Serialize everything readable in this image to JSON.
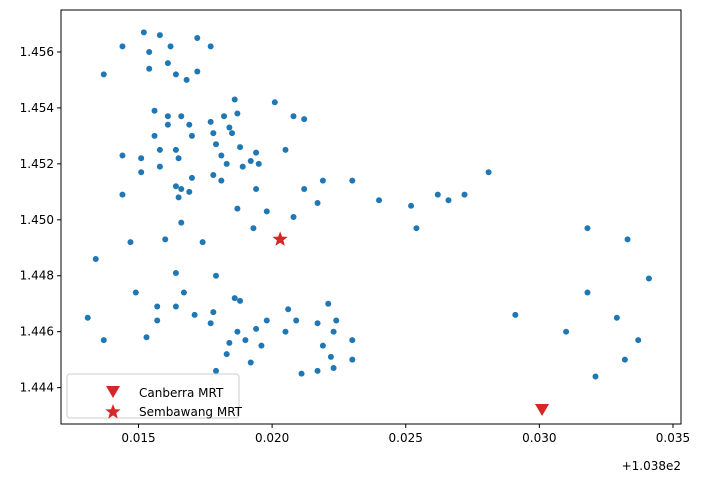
{
  "chart_data": {
    "type": "scatter",
    "title": "",
    "xlabel": "",
    "ylabel": "",
    "x_offset_label": "+1.038e2",
    "xlim": [
      0.0121,
      0.0353
    ],
    "ylim": [
      1.4427,
      1.4575
    ],
    "x_ticks": [
      {
        "value": 0.015,
        "label": "0.015"
      },
      {
        "value": 0.02,
        "label": "0.020"
      },
      {
        "value": 0.025,
        "label": "0.025"
      },
      {
        "value": 0.03,
        "label": "0.030"
      },
      {
        "value": 0.035,
        "label": "0.035"
      }
    ],
    "y_ticks": [
      {
        "value": 1.444,
        "label": "1.444"
      },
      {
        "value": 1.446,
        "label": "1.446"
      },
      {
        "value": 1.448,
        "label": "1.448"
      },
      {
        "value": 1.45,
        "label": "1.450"
      },
      {
        "value": 1.452,
        "label": "1.452"
      },
      {
        "value": 1.454,
        "label": "1.454"
      },
      {
        "value": 1.456,
        "label": "1.456"
      }
    ],
    "grid": false,
    "legend_position": "lower-left",
    "series": [
      {
        "color": "#1f77b4",
        "marker": "circle",
        "points": [
          [
            0.0152,
            1.4567
          ],
          [
            0.0158,
            1.4566
          ],
          [
            0.0172,
            1.4565
          ],
          [
            0.0144,
            1.4562
          ],
          [
            0.0162,
            1.4562
          ],
          [
            0.0177,
            1.4562
          ],
          [
            0.0154,
            1.456
          ],
          [
            0.0161,
            1.4556
          ],
          [
            0.0154,
            1.4554
          ],
          [
            0.0172,
            1.4553
          ],
          [
            0.0164,
            1.4552
          ],
          [
            0.0137,
            1.4552
          ],
          [
            0.0168,
            1.455
          ],
          [
            0.0201,
            1.4542
          ],
          [
            0.0186,
            1.4543
          ],
          [
            0.0156,
            1.4539
          ],
          [
            0.0187,
            1.4538
          ],
          [
            0.0182,
            1.4537
          ],
          [
            0.0161,
            1.4537
          ],
          [
            0.0166,
            1.4537
          ],
          [
            0.0208,
            1.4537
          ],
          [
            0.0212,
            1.4536
          ],
          [
            0.0177,
            1.4535
          ],
          [
            0.0169,
            1.4534
          ],
          [
            0.0184,
            1.4533
          ],
          [
            0.0161,
            1.4534
          ],
          [
            0.0185,
            1.4531
          ],
          [
            0.0178,
            1.4531
          ],
          [
            0.017,
            1.453
          ],
          [
            0.0156,
            1.453
          ],
          [
            0.0179,
            1.4527
          ],
          [
            0.0188,
            1.4526
          ],
          [
            0.0158,
            1.4525
          ],
          [
            0.0164,
            1.4525
          ],
          [
            0.0205,
            1.4525
          ],
          [
            0.0194,
            1.4524
          ],
          [
            0.0144,
            1.4523
          ],
          [
            0.0151,
            1.4522
          ],
          [
            0.0181,
            1.4523
          ],
          [
            0.0165,
            1.4522
          ],
          [
            0.0192,
            1.4521
          ],
          [
            0.0195,
            1.452
          ],
          [
            0.0183,
            1.452
          ],
          [
            0.0158,
            1.4519
          ],
          [
            0.0189,
            1.4519
          ],
          [
            0.0151,
            1.4517
          ],
          [
            0.0178,
            1.4516
          ],
          [
            0.017,
            1.4515
          ],
          [
            0.0219,
            1.4514
          ],
          [
            0.023,
            1.4514
          ],
          [
            0.0181,
            1.4514
          ],
          [
            0.0164,
            1.4512
          ],
          [
            0.0166,
            1.4511
          ],
          [
            0.0194,
            1.4511
          ],
          [
            0.0212,
            1.4511
          ],
          [
            0.0169,
            1.451
          ],
          [
            0.0281,
            1.4517
          ],
          [
            0.0144,
            1.4509
          ],
          [
            0.0165,
            1.4508
          ],
          [
            0.0217,
            1.4506
          ],
          [
            0.024,
            1.4507
          ],
          [
            0.0262,
            1.4509
          ],
          [
            0.0272,
            1.4509
          ],
          [
            0.0266,
            1.4507
          ],
          [
            0.0252,
            1.4505
          ],
          [
            0.0187,
            1.4504
          ],
          [
            0.0198,
            1.4503
          ],
          [
            0.0208,
            1.4501
          ],
          [
            0.0166,
            1.4499
          ],
          [
            0.0193,
            1.4497
          ],
          [
            0.0254,
            1.4497
          ],
          [
            0.0318,
            1.4497
          ],
          [
            0.0147,
            1.4492
          ],
          [
            0.016,
            1.4493
          ],
          [
            0.0174,
            1.4492
          ],
          [
            0.0333,
            1.4493
          ],
          [
            0.0134,
            1.4486
          ],
          [
            0.0164,
            1.4481
          ],
          [
            0.0179,
            1.448
          ],
          [
            0.0341,
            1.4479
          ],
          [
            0.0149,
            1.4474
          ],
          [
            0.0167,
            1.4474
          ],
          [
            0.0318,
            1.4474
          ],
          [
            0.0186,
            1.4472
          ],
          [
            0.0188,
            1.4471
          ],
          [
            0.0164,
            1.4469
          ],
          [
            0.0171,
            1.4466
          ],
          [
            0.0178,
            1.4467
          ],
          [
            0.0157,
            1.4469
          ],
          [
            0.0198,
            1.4464
          ],
          [
            0.0206,
            1.4468
          ],
          [
            0.0209,
            1.4464
          ],
          [
            0.0221,
            1.447
          ],
          [
            0.0291,
            1.4466
          ],
          [
            0.0224,
            1.4464
          ],
          [
            0.0217,
            1.4463
          ],
          [
            0.0329,
            1.4465
          ],
          [
            0.0157,
            1.4464
          ],
          [
            0.0177,
            1.4463
          ],
          [
            0.0131,
            1.4465
          ],
          [
            0.0187,
            1.446
          ],
          [
            0.0194,
            1.4461
          ],
          [
            0.0205,
            1.446
          ],
          [
            0.0223,
            1.446
          ],
          [
            0.031,
            1.446
          ],
          [
            0.0153,
            1.4458
          ],
          [
            0.019,
            1.4457
          ],
          [
            0.0219,
            1.4455
          ],
          [
            0.0184,
            1.4456
          ],
          [
            0.0196,
            1.4455
          ],
          [
            0.023,
            1.4457
          ],
          [
            0.0137,
            1.4457
          ],
          [
            0.0183,
            1.4452
          ],
          [
            0.0337,
            1.4457
          ],
          [
            0.0192,
            1.4449
          ],
          [
            0.0222,
            1.4451
          ],
          [
            0.023,
            1.445
          ],
          [
            0.0332,
            1.445
          ],
          [
            0.0179,
            1.4446
          ],
          [
            0.0211,
            1.4445
          ],
          [
            0.0217,
            1.4446
          ],
          [
            0.0223,
            1.4447
          ],
          [
            0.0321,
            1.4444
          ]
        ]
      },
      {
        "name": "Canberra MRT",
        "color": "#d62728",
        "marker": "triangle-down",
        "points": [
          [
            0.0301,
            1.4432
          ]
        ]
      },
      {
        "name": "Sembawang MRT",
        "color": "#d62728",
        "marker": "star",
        "points": [
          [
            0.0203,
            1.4493
          ]
        ]
      }
    ],
    "legend": [
      {
        "label": "Canberra MRT",
        "marker": "triangle-down",
        "color": "#d62728"
      },
      {
        "label": "Sembawang MRT",
        "marker": "star",
        "color": "#d62728"
      }
    ]
  }
}
